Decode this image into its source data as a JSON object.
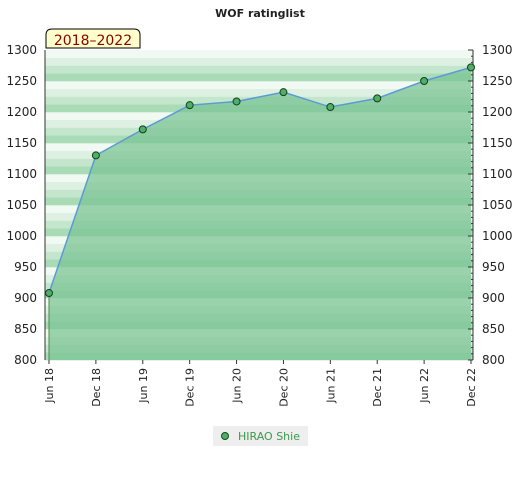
{
  "chart_data": {
    "type": "area",
    "title": "WOF ratinglist",
    "period_label": "2018–2022",
    "xlabel": "",
    "ylabel": "",
    "ylim": [
      800,
      1300
    ],
    "yticks": [
      800,
      850,
      900,
      950,
      1000,
      1050,
      1100,
      1150,
      1200,
      1250,
      1300
    ],
    "ytick_labels": [
      "800",
      "850",
      "900",
      "950",
      "1000",
      "1050",
      "1100",
      "1150",
      "1200",
      "1250",
      "1300"
    ],
    "right_axis": true,
    "grid": false,
    "legend_position": "bottom-center",
    "categories": [
      "Jun 18",
      "Dec 18",
      "Jun 19",
      "Dec 19",
      "Jun 20",
      "Dec 20",
      "Jun 21",
      "Dec 21",
      "Jun 22",
      "Dec 22"
    ],
    "series": [
      {
        "name": "HIRAO Shie",
        "values": [
          908,
          1130,
          1172,
          1211,
          1217,
          1232,
          1208,
          1222,
          1250,
          1272
        ]
      }
    ],
    "colors": {
      "line": "#5b9bd5",
      "area": "#7cc494",
      "marker_fill": "#4caf6a",
      "legend_text": "#3a9a4a",
      "badge_fill": "#ffffcc",
      "badge_text": "#8b0000"
    }
  }
}
